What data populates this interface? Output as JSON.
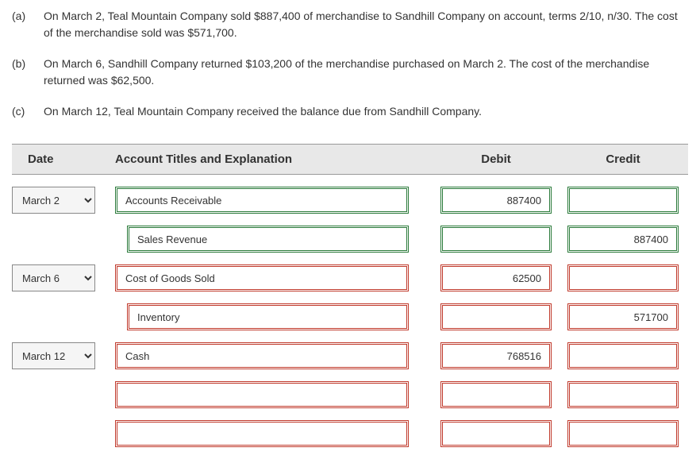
{
  "problems": [
    {
      "label": "(a)",
      "text": "On March 2, Teal Mountain Company sold $887,400 of merchandise to Sandhill Company on account, terms 2/10, n/30. The cost of the merchandise sold was $571,700."
    },
    {
      "label": "(b)",
      "text": "On March 6, Sandhill Company returned $103,200 of the merchandise purchased on March 2. The cost of the merchandise returned was $62,500."
    },
    {
      "label": "(c)",
      "text": "On March 12, Teal Mountain Company received the balance due from Sandhill Company."
    }
  ],
  "headers": {
    "date": "Date",
    "account": "Account Titles and Explanation",
    "debit": "Debit",
    "credit": "Credit"
  },
  "entries": [
    {
      "date": "March 2",
      "account": "Accounts Receivable",
      "account_indent": false,
      "account_correct": true,
      "debit": "887400",
      "debit_correct": true,
      "credit": "",
      "credit_correct": true
    },
    {
      "date": "",
      "account": "Sales Revenue",
      "account_indent": true,
      "account_correct": true,
      "debit": "",
      "debit_correct": true,
      "credit": "887400",
      "credit_correct": true
    },
    {
      "date": "March 6",
      "account": "Cost of Goods Sold",
      "account_indent": false,
      "account_correct": false,
      "debit": "62500",
      "debit_correct": false,
      "credit": "",
      "credit_correct": false
    },
    {
      "date": "",
      "account": "Inventory",
      "account_indent": true,
      "account_correct": false,
      "debit": "",
      "debit_correct": false,
      "credit": "571700",
      "credit_correct": false
    },
    {
      "date": "March 12",
      "account": "Cash",
      "account_indent": false,
      "account_correct": false,
      "debit": "768516",
      "debit_correct": false,
      "credit": "",
      "credit_correct": false
    },
    {
      "date": "",
      "account": "",
      "account_indent": false,
      "account_correct": false,
      "debit": "",
      "debit_correct": false,
      "credit": "",
      "credit_correct": false
    },
    {
      "date": "",
      "account": "",
      "account_indent": false,
      "account_correct": false,
      "debit": "",
      "debit_correct": false,
      "credit": "",
      "credit_correct": false
    }
  ],
  "colors": {
    "header_bg": "#e8e8e8",
    "correct_border": "#2a7a3a",
    "incorrect_border": "#c0392b",
    "text": "#333333",
    "bg": "#ffffff"
  }
}
